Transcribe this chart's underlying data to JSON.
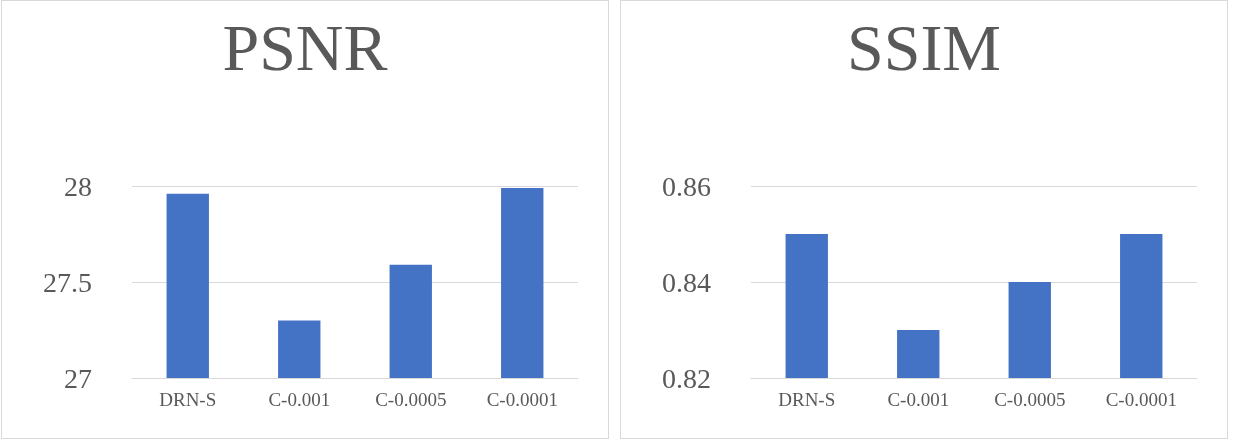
{
  "chart_data": [
    {
      "type": "bar",
      "title": "PSNR",
      "categories": [
        "DRN-S",
        "C-0.001",
        "C-0.0005",
        "C-0.0001"
      ],
      "values": [
        27.96,
        27.3,
        27.59,
        27.99
      ],
      "color": "#4472c4",
      "ylim": [
        27,
        28
      ],
      "yticks": [
        27,
        27.5,
        28
      ],
      "grid": "y"
    },
    {
      "type": "bar",
      "title": "SSIM",
      "categories": [
        "DRN-S",
        "C-0.001",
        "C-0.0005",
        "C-0.0001"
      ],
      "values": [
        0.85,
        0.83,
        0.84,
        0.85
      ],
      "color": "#4472c4",
      "ylim": [
        0.82,
        0.86
      ],
      "yticks": [
        0.82,
        0.84,
        0.86
      ],
      "grid": "y"
    }
  ]
}
